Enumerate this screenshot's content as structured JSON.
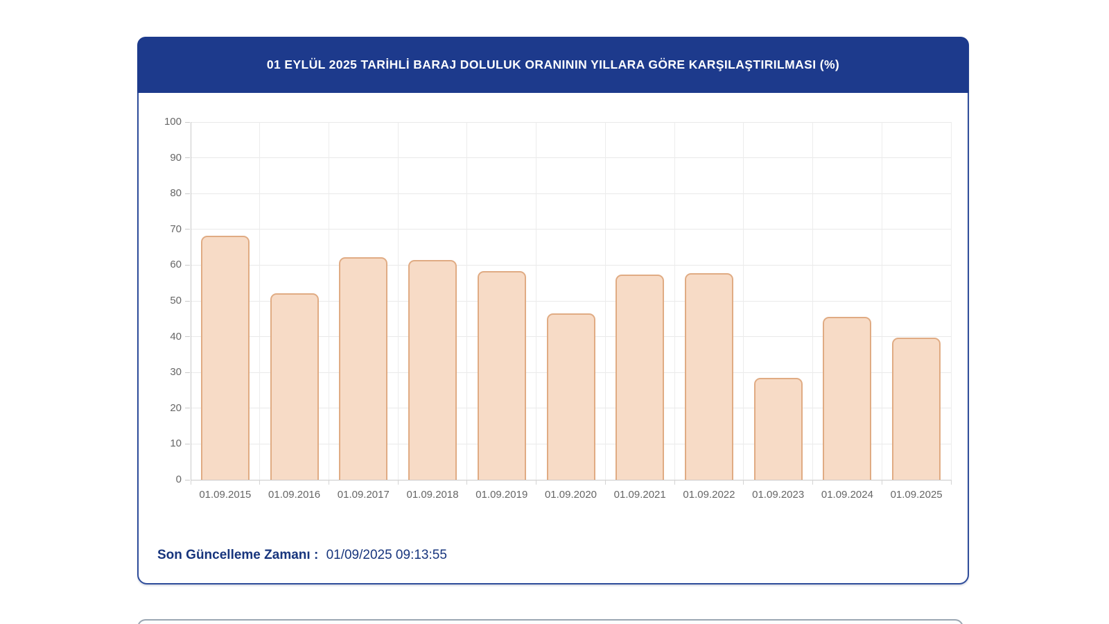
{
  "card": {
    "title": "01 EYLÜL 2025 TARİHLİ BARAJ DOLULUK ORANININ YILLARA GÖRE KARŞILAŞTIRILMASI (%)",
    "header_bg": "#1d3a8c",
    "border_color": "#2e4c9a",
    "footer": {
      "label": "Son Güncelleme Zamanı :",
      "value": "01/09/2025 09:13:55"
    }
  },
  "chart_data": {
    "type": "bar",
    "title": "01 EYLÜL 2025 TARİHLİ BARAJ DOLULUK ORANININ YILLARA GÖRE KARŞILAŞTIRILMASI (%)",
    "categories": [
      "01.09.2015",
      "01.09.2016",
      "01.09.2017",
      "01.09.2018",
      "01.09.2019",
      "01.09.2020",
      "01.09.2021",
      "01.09.2022",
      "01.09.2023",
      "01.09.2024",
      "01.09.2025"
    ],
    "values": [
      68.3,
      52.2,
      62.3,
      61.4,
      58.4,
      46.5,
      57.4,
      57.7,
      28.5,
      45.5,
      39.7
    ],
    "xlabel": "",
    "ylabel": "",
    "ylim": [
      0,
      100
    ],
    "ytick_step": 10,
    "grid": true,
    "legend": "none",
    "bar_fill": "#f7dbc6",
    "bar_border": "#e0ab83",
    "grid_color": "#e9e9e9",
    "axis_color": "#c9c9c9",
    "tick_label_color": "#666666"
  }
}
